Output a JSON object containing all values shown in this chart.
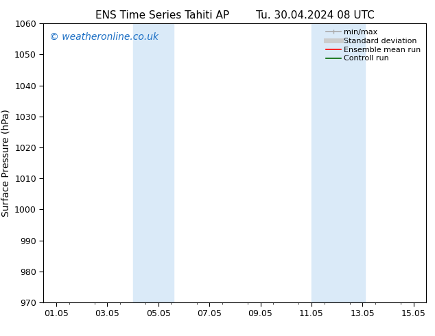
{
  "title_left": "ENS Time Series Tahiti AP",
  "title_right": "Tu. 30.04.2024 08 UTC",
  "ylabel": "Surface Pressure (hPa)",
  "ylim": [
    970,
    1060
  ],
  "yticks": [
    970,
    980,
    990,
    1000,
    1010,
    1020,
    1030,
    1040,
    1050,
    1060
  ],
  "xlim": [
    0.5,
    15.5
  ],
  "xtick_labels": [
    "01.05",
    "03.05",
    "05.05",
    "07.05",
    "09.05",
    "11.05",
    "13.05",
    "15.05"
  ],
  "xtick_positions": [
    1,
    3,
    5,
    7,
    9,
    11,
    13,
    15
  ],
  "shaded_bands": [
    {
      "x_start": 4.0,
      "x_end": 5.6
    },
    {
      "x_start": 11.0,
      "x_end": 13.1
    }
  ],
  "shaded_color": "#daeaf8",
  "watermark_text": "© weatheronline.co.uk",
  "watermark_color": "#1a6ec4",
  "watermark_fontsize": 10,
  "legend_entries": [
    {
      "label": "min/max",
      "color": "#aaaaaa",
      "lw": 1.2,
      "style": "solid",
      "marker": true
    },
    {
      "label": "Standard deviation",
      "color": "#cccccc",
      "lw": 5,
      "style": "solid"
    },
    {
      "label": "Ensemble mean run",
      "color": "#ff0000",
      "lw": 1.2,
      "style": "solid"
    },
    {
      "label": "Controll run",
      "color": "#006600",
      "lw": 1.2,
      "style": "solid"
    }
  ],
  "background_color": "#ffffff",
  "title_fontsize": 11,
  "axis_label_fontsize": 10,
  "tick_fontsize": 9,
  "legend_fontsize": 8
}
